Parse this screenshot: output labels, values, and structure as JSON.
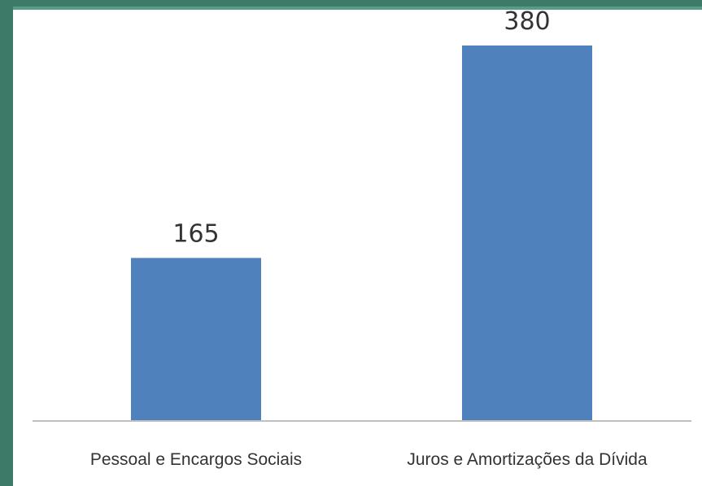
{
  "chart_data": {
    "type": "bar",
    "categories": [
      "Pessoal e Encargos Sociais",
      "Juros e Amortizações da Dívida"
    ],
    "values": [
      165,
      380
    ],
    "data_labels": [
      "165",
      "380"
    ],
    "title": "",
    "xlabel": "",
    "ylabel": "",
    "ylim": [
      0,
      400
    ],
    "grid": false,
    "legend": "none"
  },
  "colors": {
    "bar": "#4f81bd",
    "axis": "#bfbfbf",
    "frame": "#3d7a68"
  }
}
